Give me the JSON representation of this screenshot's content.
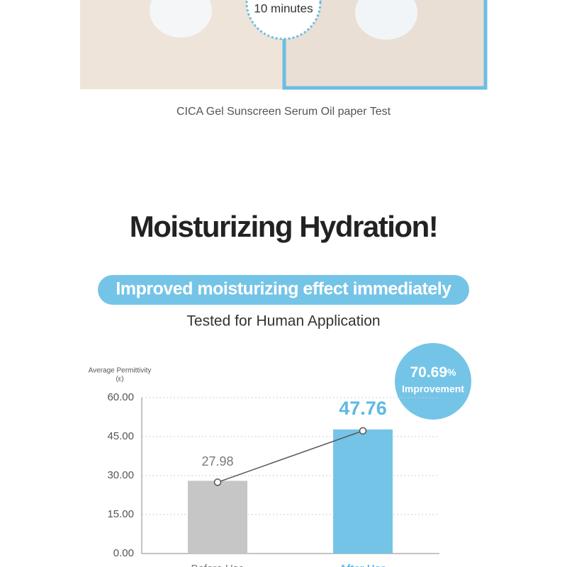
{
  "image": {
    "time_label": "10 minutes",
    "caption": "CICA Gel Sunscreen Serum Oil paper Test"
  },
  "header": {
    "title": "Moisturizing Hydration!",
    "banner": "Improved moisturizing effect immediately",
    "subtitle": "Tested for Human Application"
  },
  "badge": {
    "value": 70.69,
    "unit": "%",
    "label": "Improvement"
  },
  "chart_data": {
    "type": "bar",
    "y_label": [
      "Average Permittivity",
      "(ε)"
    ],
    "categories": [
      "Before Use",
      "After Use"
    ],
    "values": [
      27.98,
      47.76
    ],
    "colors": [
      "#c6c6c6",
      "#74c4e7"
    ],
    "label_colors": [
      "#7a7a7a",
      "#5db9e3"
    ],
    "ylim": [
      0,
      60
    ],
    "yticks": [
      {
        "value": 0,
        "label": "0.00"
      },
      {
        "value": 15,
        "label": "15.00"
      },
      {
        "value": 30,
        "label": "30.00"
      },
      {
        "value": 45,
        "label": "45.00"
      },
      {
        "value": 60,
        "label": "60.00"
      }
    ],
    "grid": true,
    "line": true
  }
}
